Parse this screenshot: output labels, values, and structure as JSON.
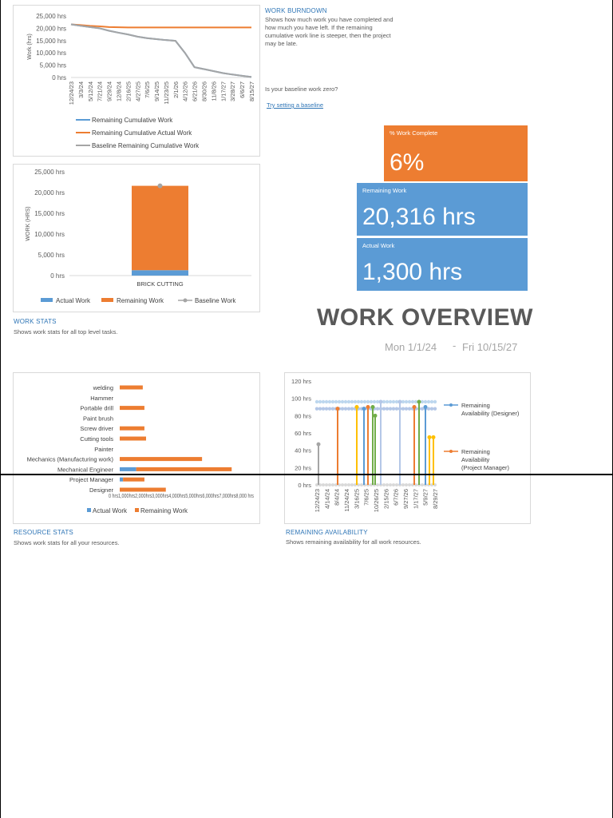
{
  "colors": {
    "orange": "#ed7d31",
    "blue": "#5b9bd5",
    "gray": "#a5a5a5",
    "link": "#2e75b6",
    "yellow": "#ffc000",
    "green": "#70ad47"
  },
  "burndown": {
    "title": "WORK BURNDOWN",
    "description": "Shows how much work you have completed and how much you have left. If the remaining cumulative work line is steeper, then the project may be late.",
    "question": "Is your baseline work zero?",
    "link": "Try setting a baseline"
  },
  "work_stats": {
    "title": "WORK STATS",
    "description": "Shows work stats for all top level tasks."
  },
  "resource_stats": {
    "title": "RESOURCE STATS",
    "description": "Shows work stats for all your resources."
  },
  "remaining_availability": {
    "title": "REMAINING AVAILABILITY",
    "description": "Shows remaining availability for all work resources."
  },
  "kpis": {
    "pct_complete_label": "% Work Complete",
    "pct_complete_value": "6%",
    "remaining_label": "Remaining Work",
    "remaining_value": "20,316 hrs",
    "actual_label": "Actual Work",
    "actual_value": "1,300 hrs"
  },
  "header": {
    "title": "WORK OVERVIEW",
    "start_date": "Mon 1/1/24",
    "end_date": "Fri 10/15/27",
    "separator": "-"
  },
  "chart_data": [
    {
      "type": "line",
      "ylabel": "Work (hrs)",
      "y_ticks": [
        "25,000 hrs",
        "20,000 hrs",
        "15,000 hrs",
        "10,000 hrs",
        "5,000 hrs",
        "0 hrs"
      ],
      "ylim": [
        0,
        25000
      ],
      "x": [
        "12/24/23",
        "3/3/24",
        "5/12/24",
        "7/21/24",
        "9/29/24",
        "12/8/24",
        "2/16/25",
        "4/27/25",
        "7/6/25",
        "9/14/25",
        "11/23/25",
        "2/1/26",
        "4/12/26",
        "6/21/26",
        "8/30/26",
        "11/8/26",
        "1/17/27",
        "3/28/27",
        "6/6/27",
        "8/15/27"
      ],
      "series": [
        {
          "name": "Remaining Cumulative Work",
          "color": "#5b9bd5",
          "values": [
            21600,
            21000,
            20500,
            20000,
            19000,
            18200,
            17500,
            16600,
            16000,
            15600,
            15200,
            14900,
            10000,
            4200,
            3400,
            2600,
            1800,
            1200,
            700,
            200
          ]
        },
        {
          "name": "Remaining Cumulative Actual Work",
          "color": "#ed7d31",
          "values": [
            21600,
            21300,
            21000,
            20800,
            20500,
            20400,
            20350,
            20330,
            20320,
            20316,
            20316,
            20316,
            20316,
            20316,
            20316,
            20316,
            20316,
            20316,
            20316,
            20316
          ]
        },
        {
          "name": "Baseline Remaining Cumulative Work",
          "color": "#a5a5a5",
          "values": [
            21600,
            21000,
            20500,
            20000,
            19000,
            18200,
            17500,
            16600,
            16000,
            15600,
            15200,
            14900,
            10000,
            4200,
            3400,
            2600,
            1800,
            1200,
            700,
            200
          ]
        }
      ],
      "legend": "bottom"
    },
    {
      "type": "bar",
      "ylabel": "WORK (HRS)",
      "y_ticks": [
        "25,000 hrs",
        "20,000 hrs",
        "15,000 hrs",
        "10,000 hrs",
        "5,000 hrs",
        "0 hrs"
      ],
      "ylim": [
        0,
        25000
      ],
      "categories": [
        "BRICK CUTTING"
      ],
      "series": [
        {
          "name": "Actual Work",
          "color": "#5b9bd5",
          "values": [
            1300
          ]
        },
        {
          "name": "Remaining Work",
          "color": "#ed7d31",
          "values": [
            20316
          ]
        },
        {
          "name": "Baseline Work",
          "color": "#a5a5a5",
          "values": [
            21616
          ]
        }
      ],
      "legend": "bottom"
    },
    {
      "type": "bar",
      "orientation": "horizontal",
      "categories": [
        "welding",
        "Hammer",
        "Portable drill",
        "Paint brush",
        "Screw driver",
        "Cutting tools",
        "Painter",
        "Mechanics (Manufacturing work)",
        "Mechanical Engineer",
        "Project Manager",
        "Designer"
      ],
      "series": [
        {
          "name": "Actual Work",
          "color": "#5b9bd5",
          "values": [
            0,
            0,
            0,
            0,
            0,
            0,
            0,
            0,
            1000,
            200,
            0
          ]
        },
        {
          "name": "Remaining Work",
          "color": "#ed7d31",
          "values": [
            1400,
            0,
            1500,
            0,
            1500,
            1600,
            0,
            5000,
            5800,
            1300,
            2800
          ]
        }
      ],
      "x_tick_label": "0 hrs1,000hrs2,000hrs3,000hrs4,000hrs5,000hrs6,000hrs7,000hrs8,000 hrs",
      "legend": "bottom"
    },
    {
      "type": "line",
      "y_ticks": [
        "120 hrs",
        "100 hrs",
        "80 hrs",
        "60 hrs",
        "40 hrs",
        "20 hrs",
        "0 hrs"
      ],
      "ylim": [
        0,
        120
      ],
      "x": [
        "12/24/23",
        "4/14/24",
        "8/4/24",
        "11/24/24",
        "3/16/25",
        "7/6/25",
        "10/26/25",
        "2/15/26",
        "6/7/26",
        "9/27/26",
        "1/17/27",
        "5/9/27",
        "8/29/27"
      ],
      "series": [
        {
          "name": "Remaining Availability (Designer)",
          "color": "#5b9bd5"
        },
        {
          "name": "Remaining Availability (Project Manager)",
          "color": "#ed7d31"
        }
      ],
      "legend": "right"
    }
  ]
}
